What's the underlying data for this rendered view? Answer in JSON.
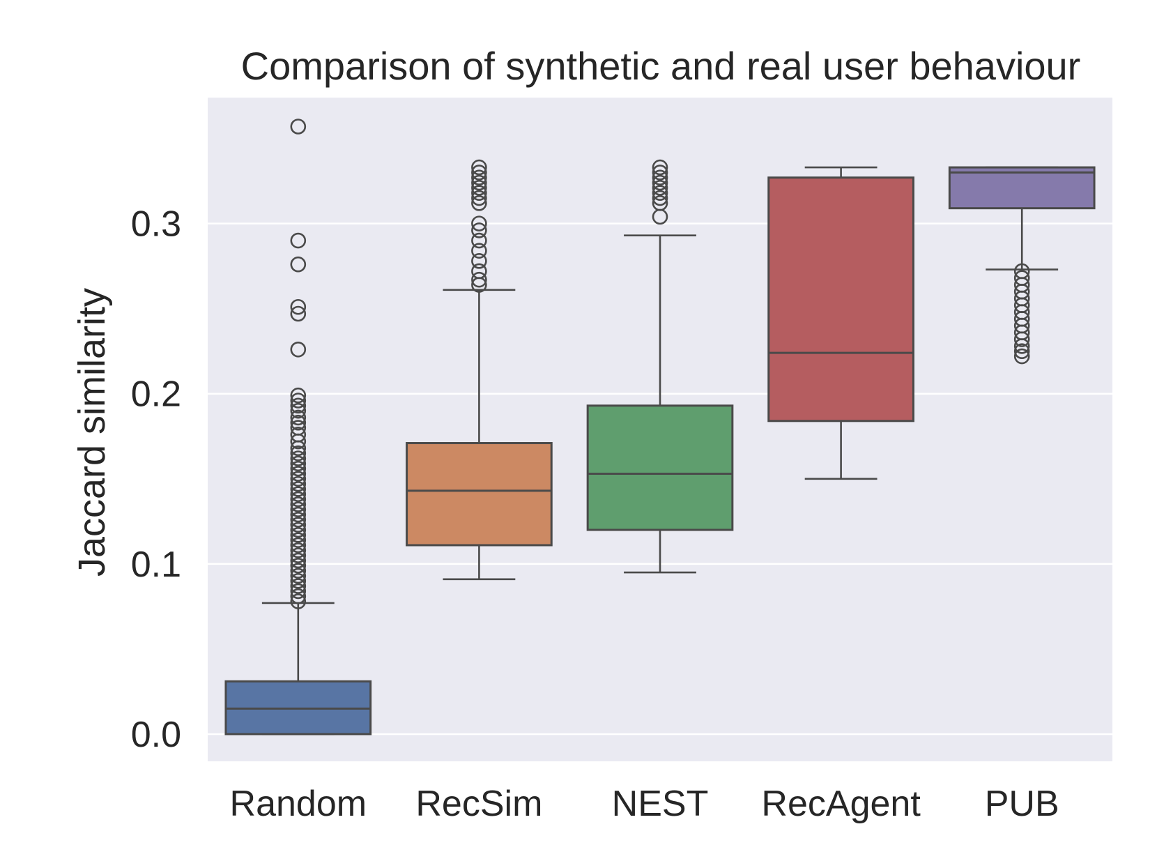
{
  "chart_data": {
    "type": "box",
    "title": "Comparison of synthetic and real user behaviour",
    "xlabel": "",
    "ylabel": "Jaccard similarity",
    "ylim": [
      -0.016,
      0.374
    ],
    "yticks": [
      0.0,
      0.1,
      0.2,
      0.3
    ],
    "ytick_labels": [
      "0.0",
      "0.1",
      "0.2",
      "0.3"
    ],
    "grid": true,
    "categories": [
      "Random",
      "RecSim",
      "NEST",
      "RecAgent",
      "PUB"
    ],
    "colors": [
      "#5875a4",
      "#cc8963",
      "#5f9e6e",
      "#b55d60",
      "#857aab"
    ],
    "boxes": [
      {
        "name": "Random",
        "whislo": 0.0,
        "q1": 0.0,
        "med": 0.015,
        "q3": 0.031,
        "whishi": 0.077,
        "fliers": [
          0.357,
          0.29,
          0.276,
          0.251,
          0.247,
          0.226,
          0.199,
          0.196,
          0.193,
          0.19,
          0.186,
          0.183,
          0.18,
          0.176,
          0.172,
          0.168,
          0.165,
          0.162,
          0.159,
          0.156,
          0.153,
          0.15,
          0.147,
          0.144,
          0.141,
          0.138,
          0.135,
          0.132,
          0.129,
          0.126,
          0.123,
          0.12,
          0.117,
          0.114,
          0.111,
          0.108,
          0.105,
          0.102,
          0.099,
          0.096,
          0.093,
          0.09,
          0.087,
          0.084,
          0.081,
          0.078
        ]
      },
      {
        "name": "RecSim",
        "whislo": 0.091,
        "q1": 0.111,
        "med": 0.143,
        "q3": 0.171,
        "whishi": 0.261,
        "fliers": [
          0.333,
          0.33,
          0.327,
          0.324,
          0.321,
          0.318,
          0.315,
          0.312,
          0.3,
          0.296,
          0.29,
          0.284,
          0.278,
          0.272,
          0.267,
          0.264
        ]
      },
      {
        "name": "NEST",
        "whislo": 0.095,
        "q1": 0.12,
        "med": 0.153,
        "q3": 0.193,
        "whishi": 0.293,
        "fliers": [
          0.333,
          0.33,
          0.327,
          0.324,
          0.321,
          0.318,
          0.315,
          0.312,
          0.304
        ]
      },
      {
        "name": "RecAgent",
        "whislo": 0.15,
        "q1": 0.184,
        "med": 0.224,
        "q3": 0.327,
        "whishi": 0.333,
        "fliers": []
      },
      {
        "name": "PUB",
        "whislo": 0.273,
        "q1": 0.309,
        "med": 0.33,
        "q3": 0.333,
        "whishi": 0.333,
        "fliers": [
          0.272,
          0.268,
          0.264,
          0.26,
          0.256,
          0.252,
          0.248,
          0.244,
          0.24,
          0.236,
          0.232,
          0.228,
          0.225,
          0.222
        ]
      }
    ]
  }
}
